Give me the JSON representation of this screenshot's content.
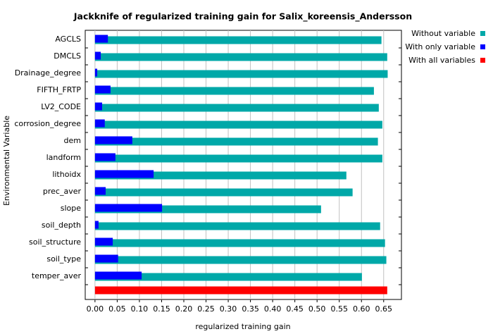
{
  "chart_data": {
    "type": "jackknife",
    "title": "Jackknife of regularized training gain for Salix_koreensis_Andersson",
    "x_label": "regularized training gain",
    "y_label": "Environmental Variable",
    "categories": [
      "AGCLS",
      "DMCLS",
      "Drainage_degree",
      "FIFTH_FRTP",
      "LV2_CODE",
      "corrosion_degree",
      "dem",
      "landform",
      "lithoidx",
      "prec_aver",
      "slope",
      "soil_depth",
      "soil_structure",
      "soil_type",
      "temper_aver"
    ],
    "series": [
      {
        "name": "Without variable",
        "color": "#00a8a8",
        "values": [
          0.645,
          0.658,
          0.659,
          0.628,
          0.639,
          0.647,
          0.637,
          0.647,
          0.566,
          0.58,
          0.509,
          0.642,
          0.653,
          0.656,
          0.601
        ]
      },
      {
        "name": "With only variable",
        "color": "#0000ff",
        "values": [
          0.029,
          0.013,
          0.005,
          0.035,
          0.016,
          0.022,
          0.084,
          0.046,
          0.132,
          0.024,
          0.151,
          0.008,
          0.04,
          0.052,
          0.105
        ]
      }
    ],
    "all_variables": {
      "name": "With all variables",
      "color": "#ff0000",
      "value": 0.658
    },
    "xlim": [
      -0.022,
      0.69
    ],
    "xticks": [
      {
        "value": 0,
        "label": "0.00"
      },
      0.05,
      {
        "value": 0.1,
        "label": "0.10"
      },
      0.15,
      {
        "value": 0.2,
        "label": "0.20"
      },
      0.25,
      {
        "value": 0.3,
        "label": "0.30"
      },
      0.35,
      {
        "value": 0.4,
        "label": "0.40"
      },
      0.45,
      {
        "value": 0.5,
        "label": "0.50"
      },
      0.55,
      {
        "value": 0.6,
        "label": "0.60"
      },
      0.65
    ],
    "grid": true
  }
}
